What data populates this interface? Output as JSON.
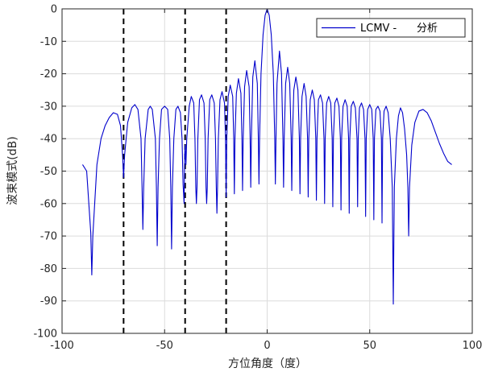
{
  "colors": {
    "series": "#0000cc",
    "marker": "#000000",
    "grid": "#dcdcdc",
    "axis": "#262626",
    "background": "#ffffff"
  },
  "chart_data": {
    "type": "line",
    "title": "",
    "xlabel": "方位角度（度）",
    "ylabel": "波束模式(dB)",
    "xlim": [
      -100,
      100
    ],
    "ylim": [
      -100,
      0
    ],
    "xticks": [
      -100,
      -50,
      0,
      50,
      100
    ],
    "xtick_labels": [
      "-100",
      "-50",
      "0",
      "50",
      "100"
    ],
    "yticks": [
      0,
      -10,
      -20,
      -30,
      -40,
      -50,
      -60,
      -70,
      -80,
      -90,
      -100
    ],
    "ytick_labels": [
      "0",
      "-10",
      "-20",
      "-30",
      "-40",
      "-50",
      "-60",
      "-70",
      "-80",
      "-90",
      "-100"
    ],
    "grid": true,
    "legend": {
      "position": "top-right",
      "entries": [
        "LCMV -      分析"
      ]
    },
    "vertical_markers": {
      "style": "dashed",
      "x": [
        -70,
        -40,
        -20
      ]
    },
    "series": [
      {
        "name": "LCMV -      分析",
        "points": [
          [
            -90,
            -48
          ],
          [
            -88,
            -50
          ],
          [
            -86,
            -69
          ],
          [
            -85.5,
            -82
          ],
          [
            -85,
            -70
          ],
          [
            -83,
            -48
          ],
          [
            -81,
            -40
          ],
          [
            -79,
            -36
          ],
          [
            -77,
            -33.5
          ],
          [
            -75,
            -32
          ],
          [
            -73,
            -32.5
          ],
          [
            -71.5,
            -36
          ],
          [
            -70.5,
            -45
          ],
          [
            -70,
            -52
          ],
          [
            -69.5,
            -45
          ],
          [
            -68,
            -35
          ],
          [
            -66,
            -30.5
          ],
          [
            -64.5,
            -29.5
          ],
          [
            -63,
            -31
          ],
          [
            -61.5,
            -40
          ],
          [
            -61,
            -55
          ],
          [
            -60.6,
            -68
          ],
          [
            -60.2,
            -55
          ],
          [
            -59.5,
            -40
          ],
          [
            -58,
            -31
          ],
          [
            -57,
            -30
          ],
          [
            -56,
            -31
          ],
          [
            -54.5,
            -40
          ],
          [
            -54,
            -55
          ],
          [
            -53.6,
            -73
          ],
          [
            -53.2,
            -55
          ],
          [
            -52.5,
            -40
          ],
          [
            -51.5,
            -31
          ],
          [
            -50,
            -30
          ],
          [
            -48.5,
            -31
          ],
          [
            -47.5,
            -40
          ],
          [
            -47,
            -55
          ],
          [
            -46.6,
            -74
          ],
          [
            -46.2,
            -55
          ],
          [
            -45.5,
            -40
          ],
          [
            -44.5,
            -31
          ],
          [
            -43.5,
            -30
          ],
          [
            -42.3,
            -32
          ],
          [
            -41.5,
            -40
          ],
          [
            -41,
            -54
          ],
          [
            -40.5,
            -60
          ],
          [
            -40.2,
            -45
          ],
          [
            -40,
            -42
          ],
          [
            -39.6,
            -48
          ],
          [
            -39.2,
            -40
          ],
          [
            -38,
            -30
          ],
          [
            -37,
            -27
          ],
          [
            -35.8,
            -29
          ],
          [
            -35.2,
            -40
          ],
          [
            -34.8,
            -55
          ],
          [
            -34.5,
            -60
          ],
          [
            -34.2,
            -55
          ],
          [
            -33.8,
            -40
          ],
          [
            -33,
            -28
          ],
          [
            -32,
            -26.5
          ],
          [
            -30.8,
            -29
          ],
          [
            -30.2,
            -40
          ],
          [
            -29.8,
            -55
          ],
          [
            -29.5,
            -60
          ],
          [
            -29.2,
            -55
          ],
          [
            -28.8,
            -40
          ],
          [
            -28,
            -28
          ],
          [
            -27,
            -26.5
          ],
          [
            -25.8,
            -29
          ],
          [
            -25.2,
            -40
          ],
          [
            -24.8,
            -55
          ],
          [
            -24.5,
            -63
          ],
          [
            -24.2,
            -55
          ],
          [
            -23.8,
            -40
          ],
          [
            -23,
            -28
          ],
          [
            -22,
            -25.5
          ],
          [
            -20.8,
            -29
          ],
          [
            -20.3,
            -40
          ],
          [
            -20,
            -58
          ],
          [
            -19.7,
            -40
          ],
          [
            -19,
            -27
          ],
          [
            -18,
            -23.5
          ],
          [
            -16.8,
            -27
          ],
          [
            -16.3,
            -40
          ],
          [
            -16,
            -57
          ],
          [
            -15.7,
            -40
          ],
          [
            -15,
            -26
          ],
          [
            -14,
            -21.5
          ],
          [
            -12.8,
            -26
          ],
          [
            -12.3,
            -40
          ],
          [
            -12,
            -56
          ],
          [
            -11.7,
            -40
          ],
          [
            -11,
            -24
          ],
          [
            -10,
            -19
          ],
          [
            -8.8,
            -24
          ],
          [
            -8.3,
            -40
          ],
          [
            -8,
            -55
          ],
          [
            -7.7,
            -40
          ],
          [
            -7,
            -21
          ],
          [
            -6,
            -16
          ],
          [
            -4.8,
            -23
          ],
          [
            -4.3,
            -40
          ],
          [
            -4,
            -54
          ],
          [
            -3.7,
            -40
          ],
          [
            -3,
            -20
          ],
          [
            -2,
            -8
          ],
          [
            -1,
            -2
          ],
          [
            0,
            0
          ],
          [
            1,
            -2
          ],
          [
            2,
            -8
          ],
          [
            3,
            -20
          ],
          [
            3.7,
            -40
          ],
          [
            4,
            -54
          ],
          [
            4.3,
            -40
          ],
          [
            4.8,
            -23
          ],
          [
            6,
            -13
          ],
          [
            7,
            -20
          ],
          [
            7.7,
            -40
          ],
          [
            8,
            -55
          ],
          [
            8.3,
            -40
          ],
          [
            9,
            -23
          ],
          [
            10,
            -18
          ],
          [
            11,
            -23
          ],
          [
            11.7,
            -40
          ],
          [
            12,
            -56
          ],
          [
            12.3,
            -40
          ],
          [
            13,
            -25
          ],
          [
            14,
            -21
          ],
          [
            15,
            -25
          ],
          [
            15.7,
            -40
          ],
          [
            16,
            -57
          ],
          [
            16.3,
            -40
          ],
          [
            17,
            -27
          ],
          [
            18,
            -23
          ],
          [
            19,
            -27
          ],
          [
            19.7,
            -40
          ],
          [
            20,
            -58
          ],
          [
            20.3,
            -40
          ],
          [
            21,
            -28
          ],
          [
            22,
            -25
          ],
          [
            23,
            -28
          ],
          [
            23.7,
            -40
          ],
          [
            24,
            -59
          ],
          [
            24.3,
            -40
          ],
          [
            25,
            -28
          ],
          [
            26,
            -26.5
          ],
          [
            27,
            -29
          ],
          [
            27.7,
            -40
          ],
          [
            28,
            -60
          ],
          [
            28.3,
            -40
          ],
          [
            29,
            -29
          ],
          [
            30,
            -27
          ],
          [
            31,
            -29
          ],
          [
            31.7,
            -40
          ],
          [
            32,
            -61
          ],
          [
            32.3,
            -40
          ],
          [
            33,
            -29
          ],
          [
            34,
            -27.5
          ],
          [
            35,
            -30
          ],
          [
            35.7,
            -40
          ],
          [
            36,
            -62
          ],
          [
            36.3,
            -40
          ],
          [
            37,
            -30
          ],
          [
            38,
            -28
          ],
          [
            39,
            -30
          ],
          [
            39.7,
            -40
          ],
          [
            40,
            -63
          ],
          [
            40.3,
            -40
          ],
          [
            41,
            -30
          ],
          [
            42,
            -28.5
          ],
          [
            43,
            -30.5
          ],
          [
            43.8,
            -40
          ],
          [
            44.1,
            -61
          ],
          [
            44.4,
            -40
          ],
          [
            45,
            -30.5
          ],
          [
            46,
            -29
          ],
          [
            47,
            -31
          ],
          [
            47.7,
            -40
          ],
          [
            48,
            -64
          ],
          [
            48.3,
            -40
          ],
          [
            49,
            -31
          ],
          [
            50,
            -29.5
          ],
          [
            51,
            -31
          ],
          [
            51.7,
            -40
          ],
          [
            52,
            -65
          ],
          [
            52.3,
            -40
          ],
          [
            53,
            -31
          ],
          [
            54,
            -30
          ],
          [
            55,
            -31.5
          ],
          [
            55.7,
            -40
          ],
          [
            56,
            -66
          ],
          [
            56.3,
            -40
          ],
          [
            57,
            -31.5
          ],
          [
            58,
            -30
          ],
          [
            59,
            -32
          ],
          [
            60,
            -40
          ],
          [
            61,
            -55
          ],
          [
            61.5,
            -91
          ],
          [
            62,
            -55
          ],
          [
            63,
            -40
          ],
          [
            64,
            -33
          ],
          [
            65,
            -30.5
          ],
          [
            66,
            -32
          ],
          [
            67,
            -37
          ],
          [
            68,
            -45
          ],
          [
            68.6,
            -55
          ],
          [
            69,
            -70
          ],
          [
            69.4,
            -55
          ],
          [
            70.5,
            -42
          ],
          [
            72,
            -35
          ],
          [
            74,
            -31.5
          ],
          [
            76,
            -31
          ],
          [
            78,
            -32
          ],
          [
            80,
            -34.5
          ],
          [
            82,
            -38
          ],
          [
            84,
            -41.5
          ],
          [
            86,
            -44.5
          ],
          [
            88,
            -47
          ],
          [
            90,
            -48
          ]
        ]
      }
    ]
  }
}
